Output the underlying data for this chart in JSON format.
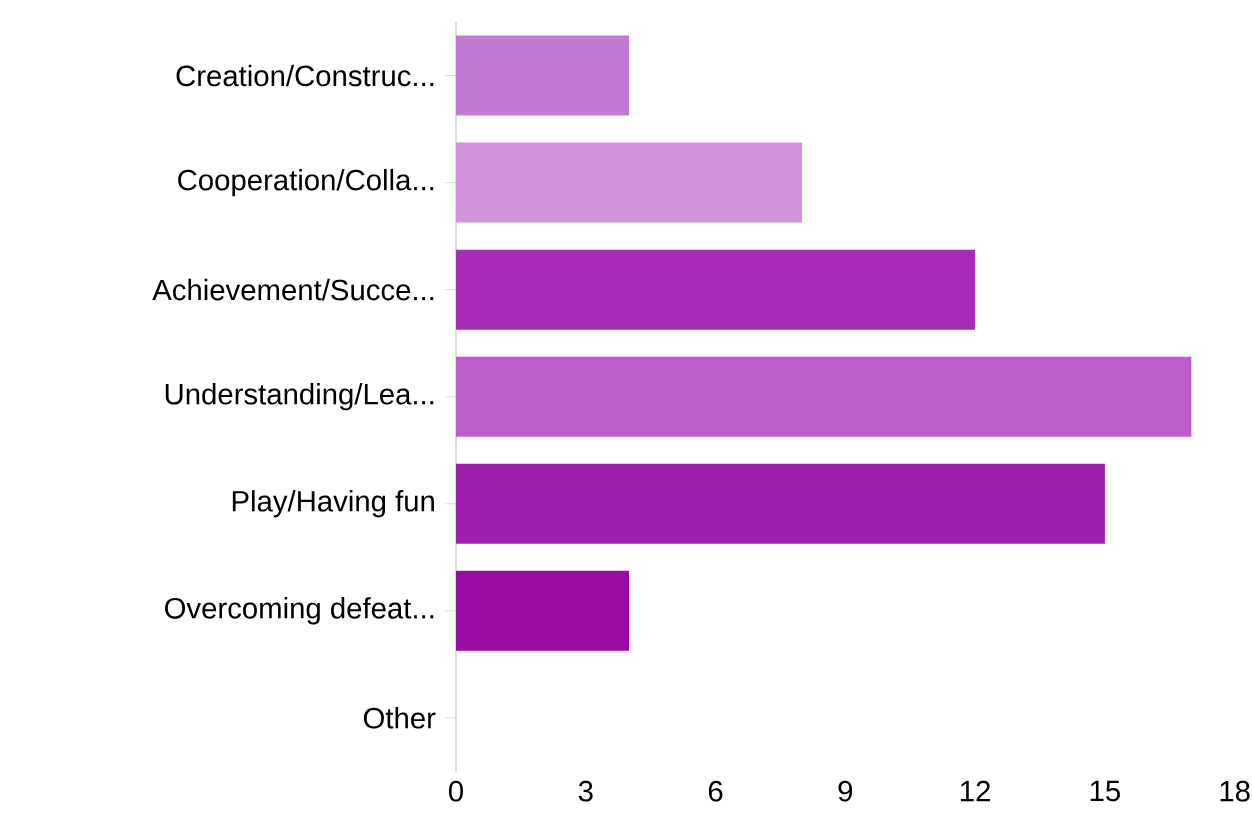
{
  "chart_data": {
    "type": "bar",
    "orientation": "horizontal",
    "categories": [
      "Creation/Construc...",
      "Cooperation/Colla...",
      "Achievement/Succe...",
      "Understanding/Lea...",
      "Play/Having fun",
      "Overcoming defeat...",
      "Other"
    ],
    "values": [
      4,
      8,
      12,
      17,
      15,
      4,
      0
    ],
    "colors": [
      "#c17ad4",
      "#d193db",
      "#a82bb8",
      "#bb5dca",
      "#a11faf",
      "#9a0aa5",
      "#9a0aa5"
    ],
    "xlim": [
      0,
      18
    ],
    "xticks": [
      0,
      3,
      6,
      9,
      12,
      15,
      18
    ],
    "grid": false
  }
}
